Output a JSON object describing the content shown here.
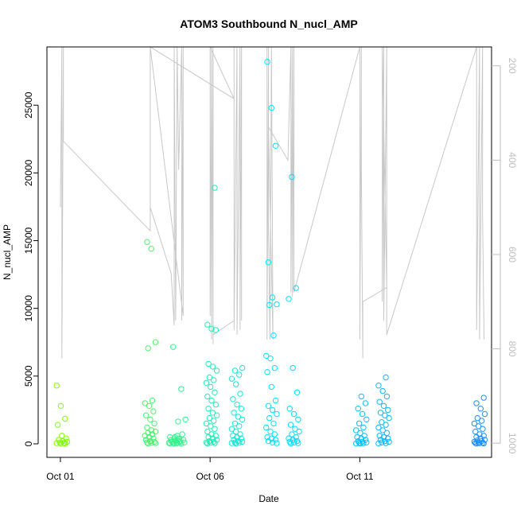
{
  "chart_data": {
    "type": "scatter",
    "title": "ATOM3 Southbound N_nucl_AMP",
    "xlabel": "Date",
    "ylabel": "N_nucl_AMP",
    "y_ticks": [
      0,
      5000,
      10000,
      15000,
      20000,
      25000
    ],
    "y_tick_labels": [
      "0",
      "5000",
      "10000",
      "15000",
      "20000",
      "25000"
    ],
    "ylim": [
      -1000,
      29300
    ],
    "x_ticks": [
      0,
      5,
      10
    ],
    "x_tick_labels": [
      "Oct 01",
      "Oct 06",
      "Oct 11"
    ],
    "xlim": [
      -0.45,
      14.4
    ],
    "right_axis": {
      "ticks": [
        200,
        400,
        600,
        800,
        1000
      ],
      "tick_labels": [
        "200",
        "400",
        "600",
        "800",
        "1000"
      ],
      "lim": [
        1030,
        160
      ],
      "color": "#bdbdbd"
    },
    "grid": false,
    "legend": "none",
    "point_color_ramp": [
      "#7fff00",
      "#00e5ff",
      "#1e90ff"
    ],
    "line_color": "#c8c8c8",
    "clusters": [
      {
        "x": 0.05,
        "values": [
          4300,
          2800,
          1850,
          1400,
          600,
          400,
          300,
          200,
          150,
          100,
          80,
          50,
          30,
          20
        ]
      },
      {
        "x": 3.0,
        "values": [
          14900,
          14400,
          7500,
          7050,
          3200,
          3000,
          2800,
          2400,
          2100,
          1800,
          1500,
          1200,
          1000,
          900,
          800,
          700,
          600,
          500,
          400,
          300,
          200,
          150,
          100,
          80,
          50,
          30
        ]
      },
      {
        "x": 3.8,
        "values": [
          7150,
          600,
          500,
          400,
          350,
          300,
          250,
          200,
          150,
          100,
          80,
          60,
          50,
          30,
          20
        ]
      },
      {
        "x": 4.0,
        "values": [
          4050,
          1800,
          1650,
          700,
          500,
          400,
          300,
          200,
          150,
          100,
          50,
          30
        ]
      },
      {
        "x": 5.05,
        "values": [
          18900,
          8800,
          8500,
          8400,
          5900,
          5700,
          5400,
          4900,
          4700,
          4500,
          4200,
          3800,
          3500,
          3200,
          2900,
          2600,
          2300,
          2100,
          1900,
          1700,
          1500,
          1300,
          1100,
          900,
          700,
          600,
          500,
          400,
          300,
          200,
          150,
          100,
          80,
          50,
          30
        ]
      },
      {
        "x": 5.9,
        "values": [
          5600,
          5400,
          5100,
          4800,
          4400,
          3700,
          3300,
          2900,
          2600,
          2300,
          2000,
          1800,
          1500,
          1300,
          1100,
          900,
          700,
          600,
          500,
          400,
          300,
          200,
          150,
          100,
          80,
          50,
          30
        ]
      },
      {
        "x": 7.05,
        "values": [
          28200,
          24800,
          22000,
          13400,
          10800,
          10300,
          10250,
          8000,
          6500,
          6300,
          5600,
          5300,
          4200,
          3200,
          2800,
          2500,
          2200,
          1900,
          1500,
          1200,
          900,
          700,
          500,
          400,
          300,
          200,
          100,
          50
        ]
      },
      {
        "x": 7.8,
        "values": [
          19700,
          11500,
          10700,
          5600,
          3800,
          2600,
          2200,
          1800,
          1400,
          1100,
          900,
          700,
          500,
          400,
          300,
          200,
          150,
          100,
          50,
          30
        ]
      },
      {
        "x": 10.05,
        "values": [
          3500,
          3000,
          2600,
          2200,
          1800,
          1500,
          1200,
          1000,
          800,
          600,
          500,
          400,
          300,
          200,
          150,
          100,
          80,
          50,
          30,
          20
        ]
      },
      {
        "x": 10.8,
        "values": [
          4900,
          4300,
          3900,
          3500,
          3100,
          2800,
          2500,
          2300,
          2100,
          1900,
          1600,
          1400,
          1200,
          1000,
          800,
          600,
          500,
          400,
          300,
          200,
          150,
          100,
          50,
          30
        ]
      },
      {
        "x": 14.0,
        "values": [
          3400,
          3000,
          2600,
          2200,
          1900,
          1700,
          1500,
          1300,
          1100,
          900,
          700,
          600,
          500,
          400,
          300,
          250,
          200,
          150,
          100,
          80,
          60,
          50,
          30,
          20
        ]
      }
    ],
    "depth_line": [
      {
        "x": 0.0,
        "y": 500
      },
      {
        "x": 0.05,
        "y": 160
      },
      {
        "x": 0.05,
        "y": 820
      },
      {
        "x": 0.1,
        "y": 160
      },
      {
        "x": 0.1,
        "y": 360
      },
      {
        "x": 3.0,
        "y": 550
      },
      {
        "x": 3.0,
        "y": 160
      },
      {
        "x": 3.0,
        "y": 500
      },
      {
        "x": 3.7,
        "y": 640
      },
      {
        "x": 3.8,
        "y": 750
      },
      {
        "x": 3.8,
        "y": 160
      },
      {
        "x": 3.85,
        "y": 740
      },
      {
        "x": 3.9,
        "y": 160
      },
      {
        "x": 3.95,
        "y": 420
      },
      {
        "x": 4.05,
        "y": 160
      },
      {
        "x": 4.05,
        "y": 740
      },
      {
        "x": 4.1,
        "y": 160
      },
      {
        "x": 4.1,
        "y": 730
      },
      {
        "x": 3.0,
        "y": 160
      },
      {
        "x": 5.8,
        "y": 270
      },
      {
        "x": 5.0,
        "y": 160
      },
      {
        "x": 5.0,
        "y": 730
      },
      {
        "x": 5.05,
        "y": 160
      },
      {
        "x": 5.05,
        "y": 780
      },
      {
        "x": 5.1,
        "y": 160
      },
      {
        "x": 5.1,
        "y": 790
      },
      {
        "x": 5.1,
        "y": 770
      },
      {
        "x": 5.8,
        "y": 740
      },
      {
        "x": 5.8,
        "y": 160
      },
      {
        "x": 5.8,
        "y": 760
      },
      {
        "x": 5.9,
        "y": 160
      },
      {
        "x": 5.9,
        "y": 770
      },
      {
        "x": 6.0,
        "y": 160
      },
      {
        "x": 6.0,
        "y": 760
      },
      {
        "x": 6.05,
        "y": 160
      },
      {
        "x": 6.05,
        "y": 740
      },
      {
        "x": 6.05,
        "y": 160
      },
      {
        "x": 6.9,
        "y": 160
      },
      {
        "x": 6.9,
        "y": 780
      },
      {
        "x": 6.95,
        "y": 160
      },
      {
        "x": 6.95,
        "y": 540
      },
      {
        "x": 7.0,
        "y": 780
      },
      {
        "x": 7.05,
        "y": 160
      },
      {
        "x": 7.1,
        "y": 780
      },
      {
        "x": 6.95,
        "y": 330
      },
      {
        "x": 7.6,
        "y": 400
      },
      {
        "x": 7.7,
        "y": 160
      },
      {
        "x": 7.7,
        "y": 680
      },
      {
        "x": 7.75,
        "y": 160
      },
      {
        "x": 7.75,
        "y": 690
      },
      {
        "x": 7.8,
        "y": 160
      },
      {
        "x": 7.8,
        "y": 680
      },
      {
        "x": 10.0,
        "y": 160
      },
      {
        "x": 10.0,
        "y": 780
      },
      {
        "x": 10.05,
        "y": 160
      },
      {
        "x": 10.05,
        "y": 400
      },
      {
        "x": 10.1,
        "y": 820
      },
      {
        "x": 10.1,
        "y": 700
      },
      {
        "x": 10.1,
        "y": 700
      },
      {
        "x": 10.9,
        "y": 670
      },
      {
        "x": 10.75,
        "y": 160
      },
      {
        "x": 10.75,
        "y": 700
      },
      {
        "x": 10.8,
        "y": 160
      },
      {
        "x": 10.8,
        "y": 740
      },
      {
        "x": 10.9,
        "y": 160
      },
      {
        "x": 10.9,
        "y": 770
      },
      {
        "x": 13.9,
        "y": 160
      },
      {
        "x": 13.9,
        "y": 760
      },
      {
        "x": 14.0,
        "y": 160
      },
      {
        "x": 14.0,
        "y": 780
      },
      {
        "x": 14.1,
        "y": 160
      },
      {
        "x": 14.1,
        "y": 520
      },
      {
        "x": 14.15,
        "y": 780
      }
    ]
  }
}
